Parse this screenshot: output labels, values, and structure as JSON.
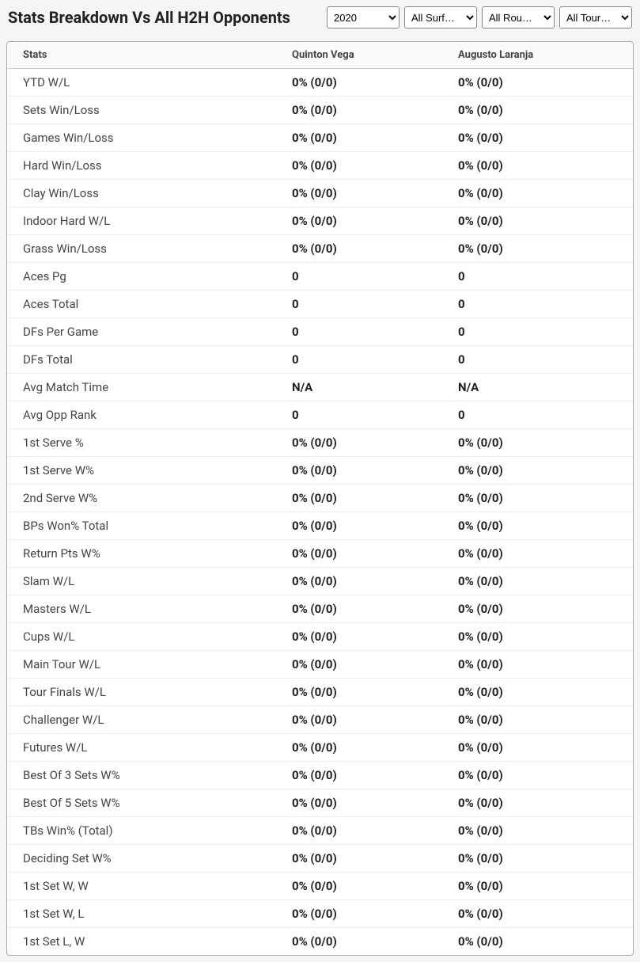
{
  "header": {
    "title": "Stats Breakdown Vs All H2H Opponents"
  },
  "filters": {
    "year": {
      "selected": "2020",
      "options": [
        "2020"
      ]
    },
    "surface": {
      "selected": "All Surf…",
      "options": [
        "All Surf…"
      ]
    },
    "round": {
      "selected": "All Rou…",
      "options": [
        "All Rou…"
      ]
    },
    "tour": {
      "selected": "All Tour…",
      "options": [
        "All Tour…"
      ]
    }
  },
  "table": {
    "columns": [
      "Stats",
      "Quinton Vega",
      "Augusto Laranja"
    ],
    "rows": [
      {
        "stat": "YTD W/L",
        "p1": "0% (0/0)",
        "p2": "0% (0/0)"
      },
      {
        "stat": "Sets Win/Loss",
        "p1": "0% (0/0)",
        "p2": "0% (0/0)"
      },
      {
        "stat": "Games Win/Loss",
        "p1": "0% (0/0)",
        "p2": "0% (0/0)"
      },
      {
        "stat": "Hard Win/Loss",
        "p1": "0% (0/0)",
        "p2": "0% (0/0)"
      },
      {
        "stat": "Clay Win/Loss",
        "p1": "0% (0/0)",
        "p2": "0% (0/0)"
      },
      {
        "stat": "Indoor Hard W/L",
        "p1": "0% (0/0)",
        "p2": "0% (0/0)"
      },
      {
        "stat": "Grass Win/Loss",
        "p1": "0% (0/0)",
        "p2": "0% (0/0)"
      },
      {
        "stat": "Aces Pg",
        "p1": "0",
        "p2": "0"
      },
      {
        "stat": "Aces Total",
        "p1": "0",
        "p2": "0"
      },
      {
        "stat": "DFs Per Game",
        "p1": "0",
        "p2": "0"
      },
      {
        "stat": "DFs Total",
        "p1": "0",
        "p2": "0"
      },
      {
        "stat": "Avg Match Time",
        "p1": "N/A",
        "p2": "N/A"
      },
      {
        "stat": "Avg Opp Rank",
        "p1": "0",
        "p2": "0"
      },
      {
        "stat": "1st Serve %",
        "p1": "0% (0/0)",
        "p2": "0% (0/0)"
      },
      {
        "stat": "1st Serve W%",
        "p1": "0% (0/0)",
        "p2": "0% (0/0)"
      },
      {
        "stat": "2nd Serve W%",
        "p1": "0% (0/0)",
        "p2": "0% (0/0)"
      },
      {
        "stat": "BPs Won% Total",
        "p1": "0% (0/0)",
        "p2": "0% (0/0)"
      },
      {
        "stat": "Return Pts W%",
        "p1": "0% (0/0)",
        "p2": "0% (0/0)"
      },
      {
        "stat": "Slam W/L",
        "p1": "0% (0/0)",
        "p2": "0% (0/0)"
      },
      {
        "stat": "Masters W/L",
        "p1": "0% (0/0)",
        "p2": "0% (0/0)"
      },
      {
        "stat": "Cups W/L",
        "p1": "0% (0/0)",
        "p2": "0% (0/0)"
      },
      {
        "stat": "Main Tour W/L",
        "p1": "0% (0/0)",
        "p2": "0% (0/0)"
      },
      {
        "stat": "Tour Finals W/L",
        "p1": "0% (0/0)",
        "p2": "0% (0/0)"
      },
      {
        "stat": "Challenger W/L",
        "p1": "0% (0/0)",
        "p2": "0% (0/0)"
      },
      {
        "stat": "Futures W/L",
        "p1": "0% (0/0)",
        "p2": "0% (0/0)"
      },
      {
        "stat": "Best Of 3 Sets W%",
        "p1": "0% (0/0)",
        "p2": "0% (0/0)"
      },
      {
        "stat": "Best Of 5 Sets W%",
        "p1": "0% (0/0)",
        "p2": "0% (0/0)"
      },
      {
        "stat": "TBs Win% (Total)",
        "p1": "0% (0/0)",
        "p2": "0% (0/0)"
      },
      {
        "stat": "Deciding Set W%",
        "p1": "0% (0/0)",
        "p2": "0% (0/0)"
      },
      {
        "stat": "1st Set W, W",
        "p1": "0% (0/0)",
        "p2": "0% (0/0)"
      },
      {
        "stat": "1st Set W, L",
        "p1": "0% (0/0)",
        "p2": "0% (0/0)"
      },
      {
        "stat": "1st Set L, W",
        "p1": "0% (0/0)",
        "p2": "0% (0/0)"
      }
    ]
  }
}
